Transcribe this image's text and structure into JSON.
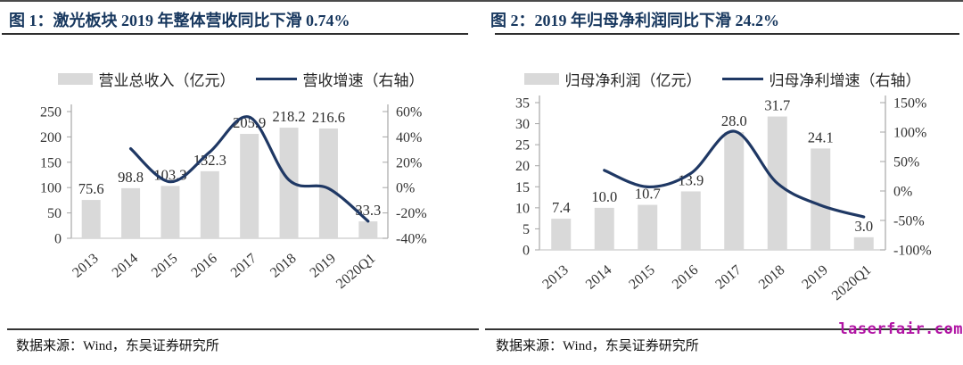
{
  "watermark": {
    "text": "laserfair.com",
    "color": "#b013a3"
  },
  "colors": {
    "bar": "#d9d9d9",
    "line": "#1f3864",
    "title": "#17375e"
  },
  "chart_data": [
    {
      "type": "bar+line",
      "title": "图 1：激光板块 2019 年整体营收同比下滑 0.74%",
      "source": "数据来源：Wind，东吴证券研究所",
      "categories": [
        "2013",
        "2014",
        "2015",
        "2016",
        "2017",
        "2018",
        "2019",
        "2020Q1"
      ],
      "series": [
        {
          "name": "营业总收入（亿元）",
          "type": "bar",
          "axis": "left",
          "values": [
            75.6,
            98.8,
            103.3,
            132.3,
            205.9,
            218.2,
            216.6,
            33.3
          ]
        },
        {
          "name": "营收增速（右轴）",
          "type": "line",
          "axis": "right",
          "values": [
            null,
            30.7,
            4.6,
            28.1,
            55.6,
            6.0,
            -0.7,
            -26.5
          ]
        }
      ],
      "left_axis": {
        "min": 0,
        "max": 250,
        "step": 50
      },
      "right_axis": {
        "min": -40,
        "max": 60,
        "step": 20,
        "suffix": "%"
      },
      "legend_position": "top",
      "grid": false
    },
    {
      "type": "bar+line",
      "title": "图 2：2019 年归母净利润同比下滑 24.2%",
      "source": "数据来源：Wind，东吴证券研究所",
      "categories": [
        "2013",
        "2014",
        "2015",
        "2016",
        "2017",
        "2018",
        "2019",
        "2020Q1"
      ],
      "series": [
        {
          "name": "归母净利润（亿元）",
          "type": "bar",
          "axis": "left",
          "values": [
            7.4,
            10.0,
            10.7,
            13.9,
            28.0,
            31.7,
            24.1,
            3.0
          ]
        },
        {
          "name": "归母净利增速（右轴）",
          "type": "line",
          "axis": "right",
          "values": [
            null,
            35.1,
            7.0,
            29.9,
            101.4,
            13.2,
            -24.2,
            -44.0
          ]
        }
      ],
      "left_axis": {
        "min": 0,
        "max": 35,
        "step": 5
      },
      "right_axis": {
        "min": -100,
        "max": 150,
        "step": 50,
        "suffix": "%"
      },
      "legend_position": "top",
      "grid": false
    }
  ]
}
